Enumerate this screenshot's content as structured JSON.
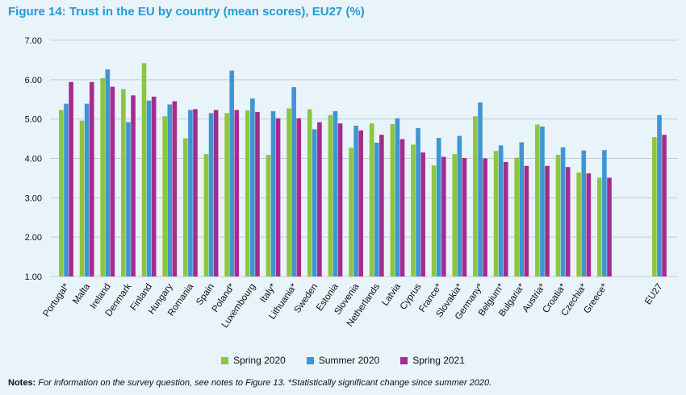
{
  "title": "Figure 14: Trust in the EU by country (mean scores), EU27 (%)",
  "notes": {
    "label": "Notes:",
    "text": "For information on the survey question, see notes to Figure 13. *Statistically significant change since summer 2020."
  },
  "chart_data": {
    "type": "bar",
    "ylim": [
      1,
      7
    ],
    "yticks": [
      "1.00",
      "2.00",
      "3.00",
      "4.00",
      "5.00",
      "6.00",
      "7.00"
    ],
    "grid": true,
    "legend_position": "bottom",
    "categories": [
      "Portugal*",
      "Malta",
      "Ireland",
      "Denmark",
      "Finland",
      "Hungary",
      "Romania",
      "Spain",
      "Poland*",
      "Luxembourg",
      "Italy*",
      "Lithuania*",
      "Sweden",
      "Estonia",
      "Slovenia",
      "Netherlands",
      "Latvia",
      "Cyprus",
      "France*",
      "Slovakia*",
      "Germany*",
      "Belgium*",
      "Bulgaria*",
      "Austria*",
      "Croatia*",
      "Czechia*",
      "Greece*",
      "EU27"
    ],
    "series": [
      {
        "name": "Spring 2020",
        "color": "#8cc63f",
        "values": [
          5.23,
          4.96,
          6.04,
          5.76,
          6.42,
          5.07,
          4.51,
          4.11,
          5.15,
          5.22,
          4.09,
          5.27,
          5.25,
          5.1,
          4.27,
          4.89,
          4.87,
          4.35,
          3.82,
          4.11,
          5.07,
          4.19,
          4.02,
          4.86,
          4.09,
          3.64,
          3.51,
          4.54
        ]
      },
      {
        "name": "Summer 2020",
        "color": "#3f95d1",
        "values": [
          5.39,
          5.39,
          6.26,
          4.92,
          5.47,
          5.37,
          5.23,
          5.15,
          6.23,
          5.52,
          5.2,
          5.81,
          4.74,
          5.2,
          4.83,
          4.4,
          5.02,
          4.77,
          4.52,
          4.57,
          5.42,
          4.33,
          4.41,
          4.81,
          4.28,
          4.2,
          4.21,
          5.1
        ]
      },
      {
        "name": "Spring 2021",
        "color": "#a62b8e",
        "values": [
          5.94,
          5.94,
          5.82,
          5.6,
          5.57,
          5.45,
          5.25,
          5.23,
          5.23,
          5.18,
          5.02,
          5.02,
          4.92,
          4.89,
          4.71,
          4.6,
          4.49,
          4.15,
          4.04,
          4.01,
          4.0,
          3.91,
          3.81,
          3.81,
          3.78,
          3.62,
          3.51,
          4.6
        ]
      }
    ]
  }
}
